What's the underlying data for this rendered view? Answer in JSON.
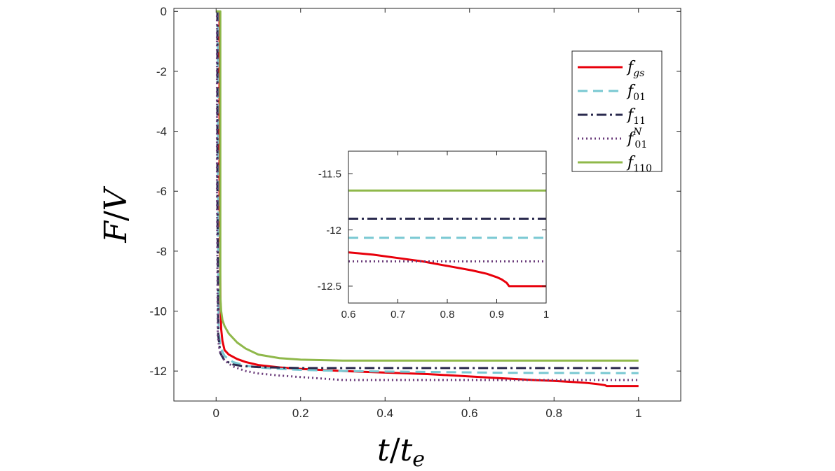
{
  "chart_data": [
    {
      "name": "main",
      "type": "line",
      "xlabel": "t/t_e",
      "xlabel_parts": {
        "num": "t",
        "slash": "/",
        "den": "t",
        "den_sub": "e"
      },
      "ylabel": "F/V",
      "ylabel_parts": {
        "num": "F",
        "slash": "/",
        "den": "V"
      },
      "xlim": [
        -0.1,
        1.1
      ],
      "ylim": [
        -13,
        0.1
      ],
      "xticks": [
        0,
        0.2,
        0.4,
        0.6,
        0.8,
        1
      ],
      "xtick_labels": [
        "0",
        "0.2",
        "0.4",
        "0.6",
        "0.8",
        "1"
      ],
      "yticks": [
        0,
        -2,
        -4,
        -6,
        -8,
        -10,
        -12
      ],
      "ytick_labels": [
        "0",
        "-2",
        "-4",
        "-6",
        "-8",
        "-10",
        "-12"
      ],
      "legend_position": "top-right",
      "series": [
        {
          "name": "f_gs",
          "label_main": "f",
          "label_sub": "gs",
          "label_sup": "",
          "color": "#e8000b",
          "style": "solid",
          "x": [
            0.008,
            0.008,
            0.01,
            0.012,
            0.015,
            0.02,
            0.03,
            0.05,
            0.07,
            0.1,
            0.15,
            0.2,
            0.3,
            0.4,
            0.5,
            0.6,
            0.65,
            0.7,
            0.75,
            0.8,
            0.85,
            0.88,
            0.9,
            0.91,
            0.92,
            0.925,
            0.93,
            1.0
          ],
          "y": [
            0,
            -6,
            -9.5,
            -10.6,
            -11.0,
            -11.3,
            -11.45,
            -11.6,
            -11.7,
            -11.8,
            -11.88,
            -11.93,
            -12.0,
            -12.05,
            -12.1,
            -12.18,
            -12.22,
            -12.26,
            -12.3,
            -12.33,
            -12.37,
            -12.4,
            -12.43,
            -12.45,
            -12.47,
            -12.5,
            -12.5,
            -12.5
          ]
        },
        {
          "name": "f_01",
          "label_main": "f",
          "label_sub": "01",
          "label_sup": "",
          "color": "#78c8d2",
          "style": "dashed",
          "x": [
            0.004,
            0.004,
            0.006,
            0.01,
            0.02,
            0.04,
            0.07,
            0.1,
            0.15,
            0.2,
            0.3,
            0.5,
            0.7,
            1.0
          ],
          "y": [
            0,
            -6,
            -10.6,
            -11.2,
            -11.5,
            -11.7,
            -11.82,
            -11.88,
            -11.93,
            -11.96,
            -12.0,
            -12.03,
            -12.06,
            -12.07
          ]
        },
        {
          "name": "f_11",
          "label_main": "f",
          "label_sub": "11",
          "label_sup": "",
          "color": "#2a2a4e",
          "style": "dashdot",
          "x": [
            0.003,
            0.003,
            0.005,
            0.01,
            0.02,
            0.04,
            0.06,
            0.1,
            0.2,
            0.4,
            0.6,
            1.0
          ],
          "y": [
            0,
            -6,
            -10.8,
            -11.4,
            -11.65,
            -11.78,
            -11.83,
            -11.87,
            -11.9,
            -11.9,
            -11.9,
            -11.9
          ]
        },
        {
          "name": "f_01^N",
          "label_main": "f",
          "label_sub": "01",
          "label_sup": "N",
          "color": "#6a3b7a",
          "style": "dotted",
          "x": [
            0.002,
            0.002,
            0.004,
            0.007,
            0.01,
            0.015,
            0.02,
            0.04,
            0.07,
            0.1,
            0.15,
            0.2,
            0.25,
            0.3,
            0.4,
            0.6,
            1.0
          ],
          "y": [
            0,
            -6,
            -10.8,
            -11.2,
            -11.4,
            -11.55,
            -11.65,
            -11.85,
            -12.0,
            -12.08,
            -12.15,
            -12.2,
            -12.25,
            -12.3,
            -12.3,
            -12.3,
            -12.3
          ]
        },
        {
          "name": "f_110",
          "label_main": "f",
          "label_sub": "110",
          "label_sup": "",
          "color": "#8fb84a",
          "style": "solid",
          "x": [
            0.0,
            0.005,
            0.01,
            0.01,
            0.012,
            0.015,
            0.02,
            0.03,
            0.05,
            0.07,
            0.1,
            0.15,
            0.2,
            0.3,
            0.4,
            0.6,
            0.8,
            1.0
          ],
          "y": [
            0,
            0,
            0,
            -9.5,
            -10.0,
            -10.3,
            -10.5,
            -10.75,
            -11.05,
            -11.25,
            -11.45,
            -11.57,
            -11.62,
            -11.65,
            -11.65,
            -11.65,
            -11.65,
            -11.65
          ]
        }
      ]
    },
    {
      "name": "inset",
      "type": "line",
      "xlim": [
        0.6,
        1.0
      ],
      "ylim": [
        -12.65,
        -11.3
      ],
      "xticks": [
        0.6,
        0.7,
        0.8,
        0.9,
        1
      ],
      "xtick_labels": [
        "0.6",
        "0.7",
        "0.8",
        "0.9",
        "1"
      ],
      "yticks": [
        -11.5,
        -12,
        -12.5
      ],
      "ytick_labels": [
        "-11.5",
        "-12",
        "-12.5"
      ],
      "series": [
        {
          "name": "f_gs",
          "color": "#e8000b",
          "style": "solid",
          "x": [
            0.6,
            0.65,
            0.7,
            0.75,
            0.8,
            0.85,
            0.88,
            0.9,
            0.91,
            0.92,
            0.925,
            0.93,
            1.0
          ],
          "y": [
            -12.2,
            -12.22,
            -12.25,
            -12.28,
            -12.32,
            -12.36,
            -12.39,
            -12.42,
            -12.44,
            -12.47,
            -12.5,
            -12.5,
            -12.5
          ]
        },
        {
          "name": "f_01",
          "color": "#78c8d2",
          "style": "dashed",
          "x": [
            0.6,
            1.0
          ],
          "y": [
            -12.07,
            -12.07
          ]
        },
        {
          "name": "f_11",
          "color": "#2a2a4e",
          "style": "dashdot",
          "x": [
            0.6,
            1.0
          ],
          "y": [
            -11.9,
            -11.9
          ]
        },
        {
          "name": "f_01^N",
          "color": "#6a3b7a",
          "style": "dotted",
          "x": [
            0.6,
            1.0
          ],
          "y": [
            -12.28,
            -12.28
          ]
        },
        {
          "name": "f_110",
          "color": "#8fb84a",
          "style": "solid",
          "x": [
            0.6,
            1.0
          ],
          "y": [
            -11.65,
            -11.65
          ]
        }
      ]
    }
  ]
}
